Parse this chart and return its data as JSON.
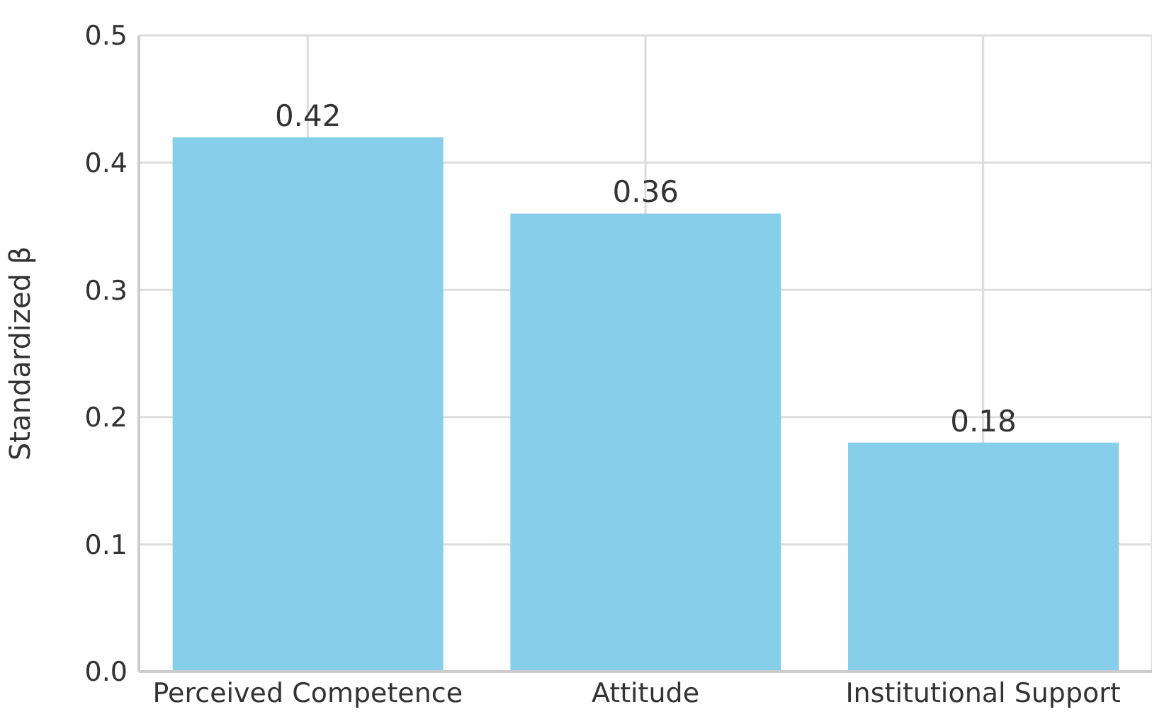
{
  "chart_data": {
    "type": "bar",
    "ylabel": "Standardized β",
    "categories": [
      "Perceived Competence",
      "Attitude",
      "Institutional Support"
    ],
    "values": [
      0.42,
      0.36,
      0.18
    ],
    "color": "#87ceeb",
    "ylim": [
      0,
      0.5
    ],
    "yticks": [
      {
        "value": 0,
        "label": "0.0"
      },
      {
        "value": 0.1,
        "label": "0.1"
      },
      {
        "value": 0.2,
        "label": "0.2"
      },
      {
        "value": 0.3,
        "label": "0.3"
      },
      {
        "value": 0.4,
        "label": "0.4"
      },
      {
        "value": 0.5,
        "label": "0.5"
      }
    ],
    "grid": true,
    "data_labels": true
  }
}
